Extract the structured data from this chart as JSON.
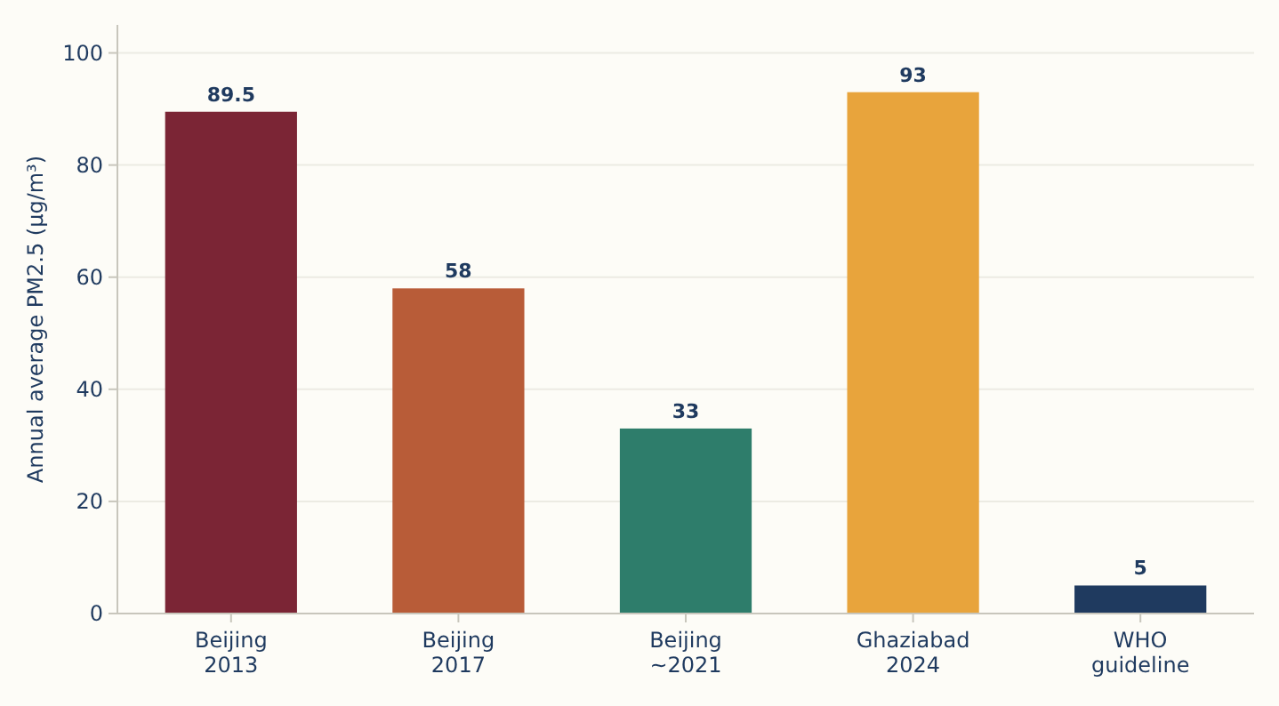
{
  "chart_data": {
    "type": "bar",
    "ylabel": "Annual average PM2.5 (µg/m³)",
    "categories": [
      "Beijing\n2013",
      "Beijing\n2017",
      "Beijing\n~2021",
      "Ghaziabad\n2024",
      "WHO\nguideline"
    ],
    "values": [
      89.5,
      58,
      33,
      93,
      5
    ],
    "colors": [
      "#7b2535",
      "#b85c38",
      "#2e7d6b",
      "#e8a43c",
      "#1f3a5f"
    ],
    "ylim": [
      0,
      105
    ],
    "yticks": [
      0,
      20,
      40,
      60,
      80,
      100
    ],
    "grid": "y",
    "data_labels": true
  }
}
